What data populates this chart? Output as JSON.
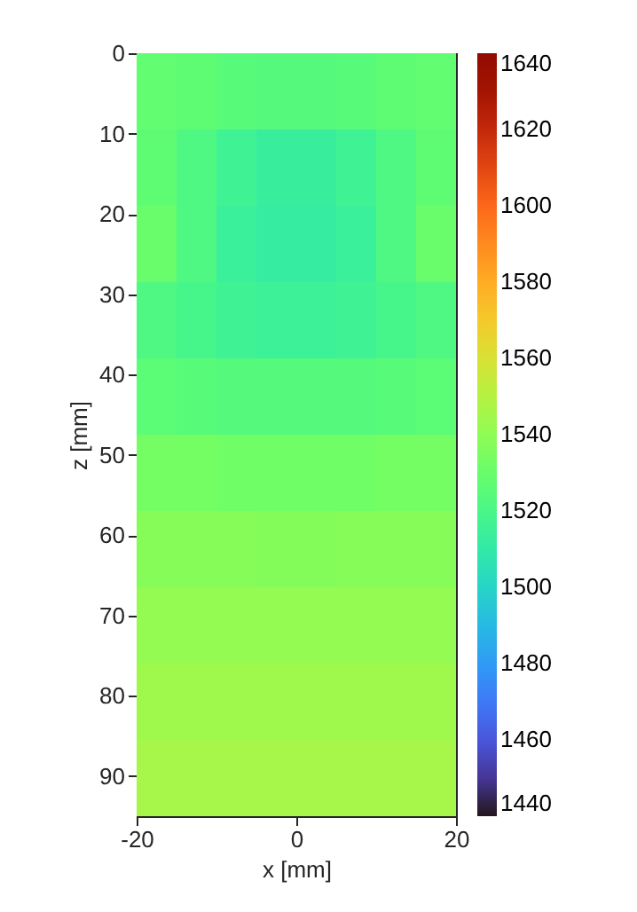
{
  "chart_data": {
    "type": "heatmap",
    "xlabel": "x [mm]",
    "ylabel": "z [mm]",
    "xlim": [
      -20,
      20
    ],
    "xticks": [
      -20,
      0,
      20
    ],
    "ylim": [
      95,
      0
    ],
    "yticks": [
      0,
      10,
      20,
      30,
      40,
      50,
      60,
      70,
      80,
      90
    ],
    "clim": [
      1440,
      1640
    ],
    "cticks": [
      1440,
      1460,
      1480,
      1500,
      1520,
      1540,
      1560,
      1580,
      1600,
      1620,
      1640
    ],
    "cells": [
      [
        1528,
        1527,
        1525,
        1524,
        1524,
        1525,
        1527,
        1528
      ],
      [
        1527,
        1522,
        1516,
        1513,
        1513,
        1516,
        1522,
        1527
      ],
      [
        1530,
        1522,
        1514,
        1512,
        1512,
        1514,
        1522,
        1530
      ],
      [
        1522,
        1519,
        1516,
        1515,
        1515,
        1516,
        1519,
        1522
      ],
      [
        1526,
        1525,
        1524,
        1524,
        1524,
        1524,
        1525,
        1526
      ],
      [
        1533,
        1533,
        1532,
        1532,
        1532,
        1532,
        1533,
        1533
      ],
      [
        1538,
        1538,
        1538,
        1537,
        1537,
        1538,
        1538,
        1538
      ],
      [
        1541,
        1541,
        1541,
        1541,
        1541,
        1541,
        1541,
        1541
      ],
      [
        1544,
        1544,
        1544,
        1544,
        1544,
        1544,
        1544,
        1544
      ],
      [
        1546,
        1546,
        1546,
        1546,
        1546,
        1546,
        1546,
        1546
      ]
    ]
  }
}
